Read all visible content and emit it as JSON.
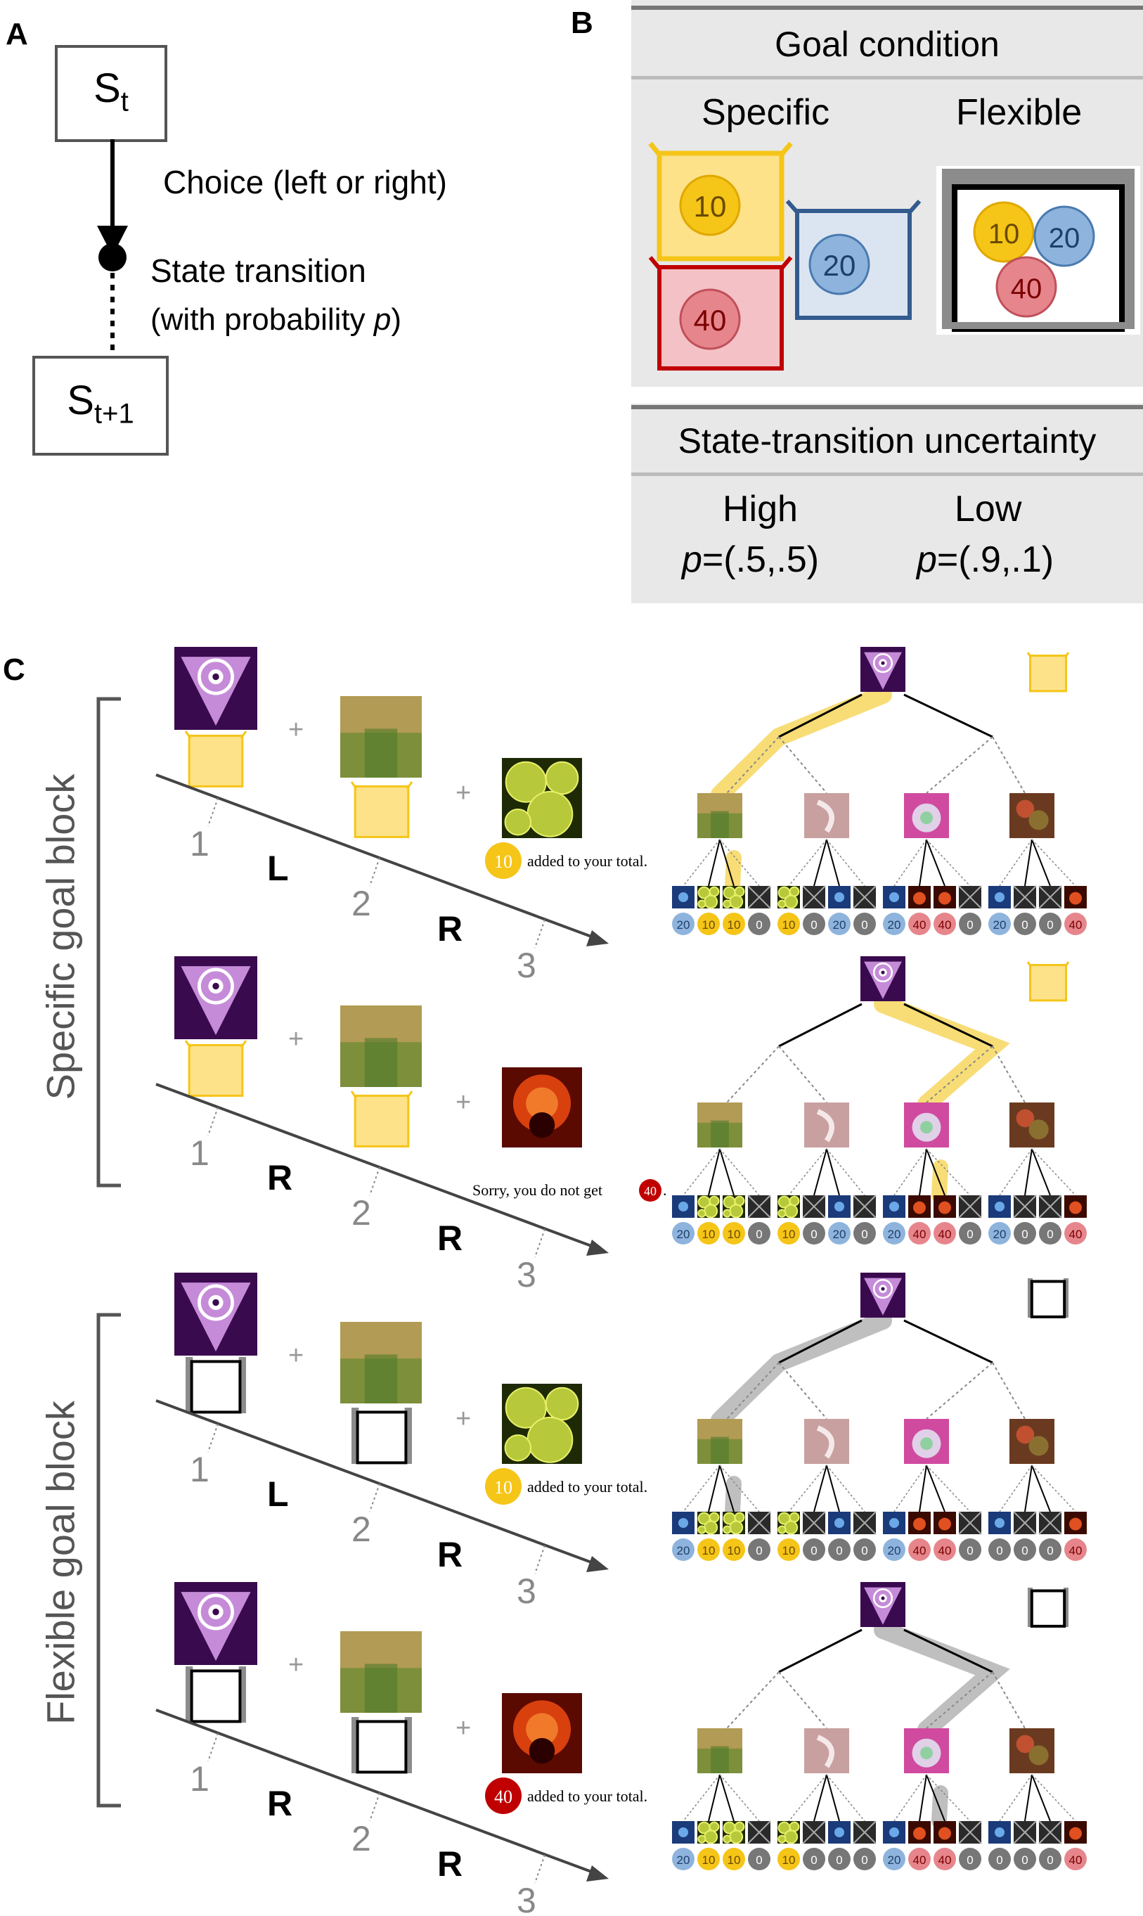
{
  "panel_a": {
    "label": "A",
    "state_top_base": "S",
    "state_top_sub": "t",
    "state_bottom_base": "S",
    "state_bottom_sub": "t+1",
    "choice_text": "Choice (left or right)",
    "transition_line1": "State transition",
    "transition_line2_prefix": "(with probability ",
    "transition_line2_var": "p",
    "transition_line2_suffix": ")"
  },
  "panel_b": {
    "label": "B",
    "goal_header": "Goal condition",
    "specific_label": "Specific",
    "flexible_label": "Flexible",
    "tokens": {
      "yellow": "10",
      "blue": "20",
      "red": "40"
    },
    "uncertainty_header": "State-transition uncertainty",
    "high_label": "High",
    "low_label": "Low",
    "high_p_var": "p",
    "high_p_val": "=(.5,.5)",
    "low_p_var": "p",
    "low_p_val": "=(.9,.1)"
  },
  "panel_c": {
    "label": "C",
    "specific_block_label": "Specific goal block",
    "flexible_block_label": "Flexible goal block",
    "step_labels": [
      "1",
      "2",
      "3"
    ],
    "plus": "+",
    "trials": [
      {
        "choice1": "L",
        "choice2": "R",
        "token": "10",
        "outcome_text": "added to your total.",
        "goal": "specific"
      },
      {
        "choice1": "R",
        "choice2": "R",
        "outcome_prefix": "Sorry, you do not get",
        "token": "40",
        "outcome_suffix": ".",
        "goal": "specific"
      },
      {
        "choice1": "L",
        "choice2": "R",
        "token": "10",
        "outcome_text": "added to your total.",
        "goal": "flexible"
      },
      {
        "choice1": "R",
        "choice2": "R",
        "token": "40",
        "outcome_text": "added to your total.",
        "goal": "flexible"
      }
    ],
    "tree_values_specific": [
      "20",
      "10",
      "10",
      "0",
      "10",
      "0",
      "20",
      "0",
      "20",
      "40",
      "40",
      "0",
      "20",
      "0",
      "0",
      "40"
    ],
    "tree_values_flexible": [
      "20",
      "10",
      "10",
      "0",
      "10",
      "0",
      "0",
      "0",
      "20",
      "40",
      "40",
      "0",
      "0",
      "0",
      "0",
      "40"
    ]
  },
  "colors": {
    "yellow": "#f5c518",
    "yellow_light": "#fde28a",
    "blue": "#8eb4dd",
    "red": "#e6868c",
    "dark_red": "#c00000",
    "gray_token": "#777777",
    "panel_bg": "#e8e8e8",
    "purple": "#5a1470"
  }
}
